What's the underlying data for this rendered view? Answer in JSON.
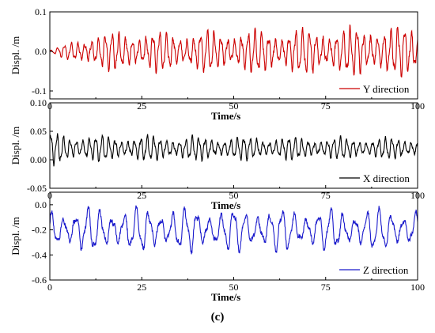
{
  "caption": "(c)",
  "chart_data": [
    {
      "type": "line",
      "xlabel": "Time/s",
      "ylabel": "Displ. /m",
      "xlim": [
        0,
        100
      ],
      "ylim": [
        -0.12,
        0.1
      ],
      "xticks": [
        0,
        25,
        50,
        75,
        100
      ],
      "yticks": [
        -0.1,
        0.0,
        0.1
      ],
      "ytick_labels": [
        "-0.1",
        "0.0",
        "0.1"
      ],
      "legend": "bottom-right",
      "grid": false,
      "series": [
        {
          "name": "Y direction",
          "color": "#cc0000",
          "mean": 0.0,
          "amp_start": 0.003,
          "amp_mid": 0.052,
          "amp_end": 0.07,
          "period": 1.85
        }
      ]
    },
    {
      "type": "line",
      "xlabel": "Time/s",
      "ylabel": "Displ. /m",
      "xlim": [
        0,
        100
      ],
      "ylim": [
        -0.05,
        0.1
      ],
      "xticks": [
        0,
        25,
        50,
        75,
        100
      ],
      "yticks": [
        -0.05,
        0.0,
        0.05,
        0.1
      ],
      "ytick_labels": [
        "-0.05",
        "0.00",
        "0.05",
        "0.10"
      ],
      "legend": "bottom-right",
      "grid": false,
      "series": [
        {
          "name": "X direction",
          "color": "#000000",
          "mean": 0.02,
          "amp_start": 0.03,
          "amp_mid": 0.025,
          "amp_end": 0.02,
          "period": 1.75
        }
      ]
    },
    {
      "type": "line",
      "xlabel": "Time/s",
      "ylabel": "Displ. /m",
      "xlim": [
        0,
        100
      ],
      "ylim": [
        -0.6,
        0.1
      ],
      "xticks": [
        0,
        25,
        50,
        75,
        100
      ],
      "yticks": [
        -0.6,
        -0.4,
        -0.2,
        0.0
      ],
      "ytick_labels": [
        "-0.6",
        "-0.4",
        "-0.2",
        "0.0"
      ],
      "legend": "bottom-right",
      "grid": false,
      "series": [
        {
          "name": "Z direction",
          "color": "#1a1acc",
          "mean": -0.2,
          "amp_start": 0.18,
          "amp_mid": 0.2,
          "amp_end": 0.18,
          "period": 3.3
        }
      ]
    }
  ]
}
